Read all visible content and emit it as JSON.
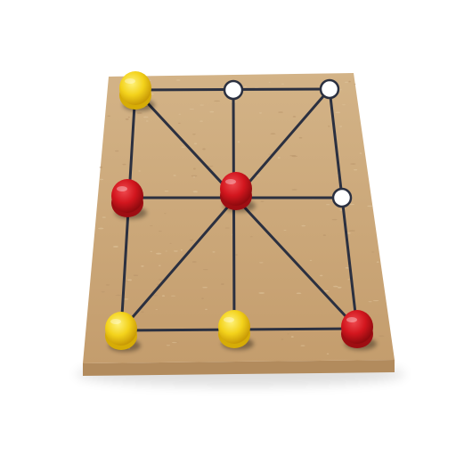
{
  "game": {
    "name": "",
    "board_grid": {
      "columns": 3,
      "rows": 3
    },
    "lines": [
      {
        "from": [
          0,
          0
        ],
        "to": [
          2,
          0
        ]
      },
      {
        "from": [
          0,
          1
        ],
        "to": [
          2,
          1
        ]
      },
      {
        "from": [
          0,
          2
        ],
        "to": [
          2,
          2
        ]
      },
      {
        "from": [
          0,
          0
        ],
        "to": [
          0,
          2
        ]
      },
      {
        "from": [
          1,
          0
        ],
        "to": [
          1,
          2
        ]
      },
      {
        "from": [
          2,
          0
        ],
        "to": [
          2,
          2
        ]
      },
      {
        "from": [
          0,
          0
        ],
        "to": [
          2,
          2
        ]
      },
      {
        "from": [
          2,
          0
        ],
        "to": [
          0,
          2
        ]
      }
    ],
    "pieces": [
      {
        "col": 0,
        "row": 0,
        "player": "yellow"
      },
      {
        "col": 0,
        "row": 1,
        "player": "red"
      },
      {
        "col": 1,
        "row": 1,
        "player": "red"
      },
      {
        "col": 2,
        "row": 2,
        "player": "red"
      },
      {
        "col": 0,
        "row": 2,
        "player": "yellow"
      },
      {
        "col": 1,
        "row": 2,
        "player": "yellow"
      }
    ],
    "empty_points": [
      {
        "col": 1,
        "row": 0
      },
      {
        "col": 2,
        "row": 0
      },
      {
        "col": 2,
        "row": 1
      }
    ],
    "colors": {
      "background": "#ffffff",
      "board": "#caa678",
      "board_edge": "#b18a5c",
      "line": "#2b3040",
      "yellow_piece": "#f3d21b",
      "yellow_piece_dark": "#d6ac06",
      "red_piece": "#d2161e",
      "red_piece_dark": "#9e0d12",
      "empty_point_fill": "#ffffff"
    }
  }
}
